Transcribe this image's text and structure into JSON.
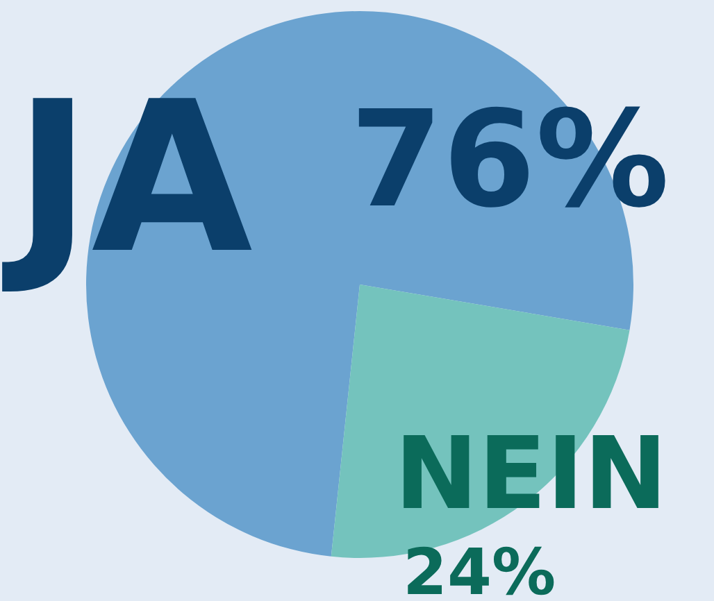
{
  "chart_data": {
    "type": "pie",
    "categories": [
      "JA",
      "NEIN"
    ],
    "values": [
      76,
      24
    ],
    "value_labels": [
      "76%",
      "24%"
    ],
    "colors": [
      "#6ba3d0",
      "#74c3bd"
    ],
    "legend": false
  }
}
